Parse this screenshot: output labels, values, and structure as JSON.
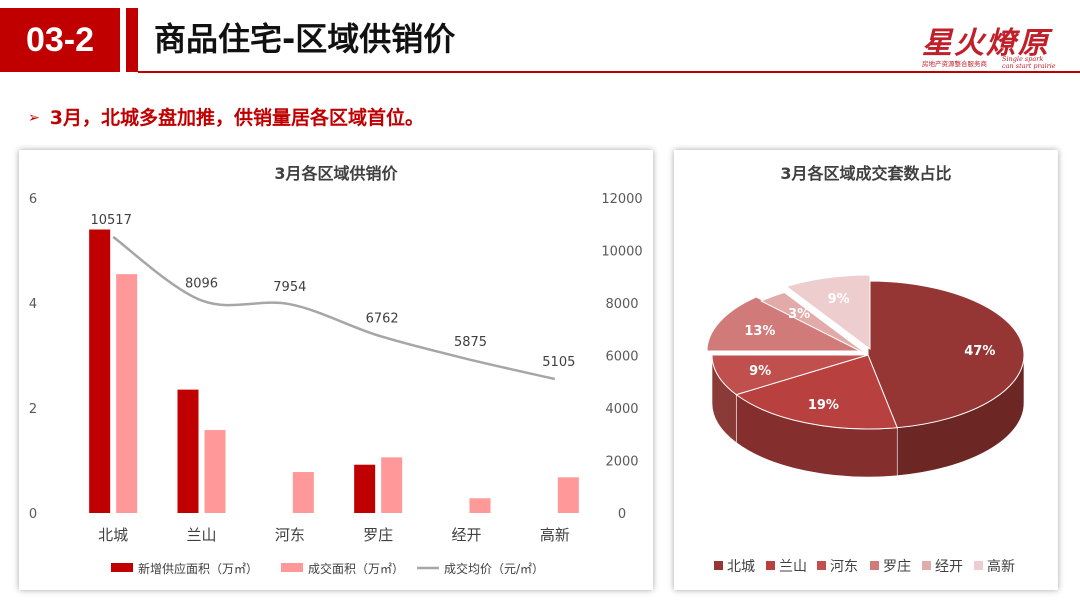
{
  "header": {
    "section_number": "03-2",
    "title": "商品住宅-区域供销价",
    "logo_text": "星火燎原",
    "logo_subtitle": "房地产资源整合服务商",
    "logo_en_line1": "Single spark",
    "logo_en_line2": "can start prairie"
  },
  "bullet": {
    "text": "3月，北城多盘加推，供销量居各区域首位。"
  },
  "left_panel": {
    "title": "3月各区域供销价"
  },
  "right_panel": {
    "title": "3月各区域成交套数占比"
  },
  "colors": {
    "brand_red": "#c00000",
    "supply_bar": "#c00000",
    "deal_bar": "#ff9999",
    "price_line": "#a6a6a6"
  },
  "chart_data": [
    {
      "type": "bar",
      "title": "3月各区域供销价",
      "categories": [
        "北城",
        "兰山",
        "河东",
        "罗庄",
        "经开",
        "高新"
      ],
      "series": [
        {
          "name": "新增供应面积（万㎡）",
          "type": "bar",
          "axis": "left",
          "color": "#c00000",
          "values": [
            5.4,
            2.35,
            0,
            0.92,
            0,
            0
          ]
        },
        {
          "name": "成交面积（万㎡）",
          "type": "bar",
          "axis": "left",
          "color": "#ff9999",
          "values": [
            4.55,
            1.58,
            0.78,
            1.06,
            0.28,
            0.68
          ]
        },
        {
          "name": "成交均价（元/㎡）",
          "type": "line",
          "axis": "right",
          "color": "#a6a6a6",
          "values": [
            10517,
            8096,
            7954,
            6762,
            5875,
            5105
          ]
        }
      ],
      "y_left": {
        "min": 0,
        "max": 6,
        "ticks": [
          0,
          2,
          4,
          6
        ]
      },
      "y_right": {
        "min": 0,
        "max": 12000,
        "ticks": [
          0,
          2000,
          4000,
          6000,
          8000,
          10000,
          12000
        ]
      },
      "legend_position": "bottom",
      "grid": false
    },
    {
      "type": "pie",
      "title": "3月各区域成交套数占比",
      "categories": [
        "北城",
        "兰山",
        "河东",
        "罗庄",
        "经开",
        "高新"
      ],
      "values": [
        47,
        19,
        9,
        13,
        3,
        9
      ],
      "labels": [
        "47%",
        "19%",
        "9%",
        "13%",
        "3%",
        "9%"
      ],
      "colors": [
        "#963634",
        "#b8403e",
        "#c0504d",
        "#d07b79",
        "#e2aaa9",
        "#edcdcd"
      ],
      "legend_position": "bottom",
      "style": "3d"
    }
  ]
}
